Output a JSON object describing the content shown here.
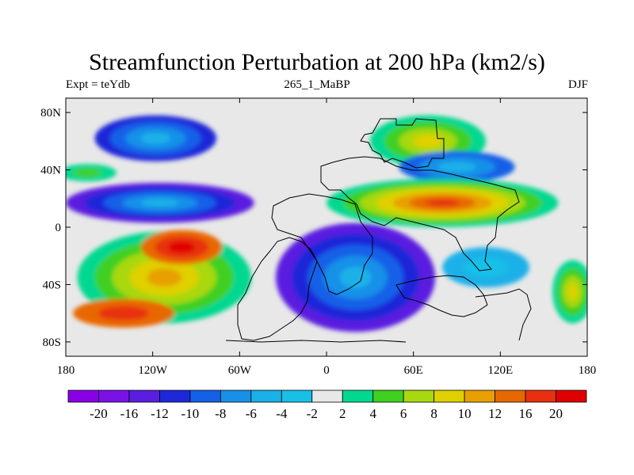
{
  "title": "Streamfunction Perturbation at 200 hPa (km2/s)",
  "subtitle_left": "Expt = teYdb",
  "subtitle_center": "265_1_MaBP",
  "subtitle_right": "DJF",
  "lat_ticks": [
    "80N",
    "40N",
    "0",
    "40S",
    "80S"
  ],
  "lat_values": [
    80,
    40,
    0,
    -40,
    -80
  ],
  "lon_ticks": [
    "180",
    "120W",
    "60W",
    "0",
    "60E",
    "120E",
    "180"
  ],
  "lon_values": [
    -180,
    -120,
    -60,
    0,
    60,
    120,
    180
  ],
  "lat_range": [
    -90,
    90
  ],
  "lon_range": [
    -180,
    180
  ],
  "background_color": "#e8e8e8",
  "colorbar": {
    "labels": [
      "-20",
      "-16",
      "-12",
      "-10",
      "-8",
      "-6",
      "-4",
      "-2",
      "2",
      "4",
      "6",
      "8",
      "10",
      "12",
      "16",
      "20"
    ],
    "colors": [
      "#8a00e6",
      "#7a12e8",
      "#5a1ee0",
      "#1e28d8",
      "#1460e8",
      "#1890e8",
      "#1ab0e8",
      "#18c0e8",
      "#e8e8e8",
      "#00d890",
      "#40d020",
      "#a8d810",
      "#e0d000",
      "#e8a000",
      "#e86800",
      "#e83010",
      "#e00000"
    ]
  },
  "blobs": [
    {
      "lon": -118,
      "lat": 62,
      "rx": 42,
      "ry": 16,
      "levels": [
        3,
        4,
        5,
        6
      ]
    },
    {
      "lon": -115,
      "lat": 17,
      "rx": 65,
      "ry": 14,
      "levels": [
        2,
        3,
        4,
        5,
        6
      ]
    },
    {
      "lon": -112,
      "lat": -35,
      "rx": 60,
      "ry": 32,
      "levels": [
        9,
        10,
        11,
        12,
        13
      ]
    },
    {
      "lon": -100,
      "lat": -14,
      "rx": 28,
      "ry": 12,
      "levels": [
        14,
        15,
        16
      ]
    },
    {
      "lon": -140,
      "lat": -60,
      "rx": 35,
      "ry": 10,
      "levels": [
        14,
        15
      ]
    },
    {
      "lon": 20,
      "lat": -35,
      "rx": 55,
      "ry": 38,
      "levels": [
        2,
        3,
        4,
        5,
        6
      ]
    },
    {
      "lon": 70,
      "lat": 60,
      "rx": 40,
      "ry": 18,
      "levels": [
        9,
        10,
        11,
        12
      ]
    },
    {
      "lon": 90,
      "lat": 42,
      "rx": 40,
      "ry": 11,
      "levels": [
        4,
        5,
        6
      ]
    },
    {
      "lon": 80,
      "lat": 17,
      "rx": 80,
      "ry": 17,
      "levels": [
        9,
        10,
        11,
        12,
        13,
        14,
        15
      ]
    },
    {
      "lon": 110,
      "lat": -28,
      "rx": 30,
      "ry": 14,
      "levels": [
        6,
        7
      ]
    },
    {
      "lon": 170,
      "lat": -45,
      "rx": 14,
      "ry": 22,
      "levels": [
        9,
        10,
        11,
        12
      ]
    },
    {
      "lon": -165,
      "lat": 38,
      "rx": 20,
      "ry": 6,
      "levels": [
        9,
        10
      ]
    }
  ]
}
